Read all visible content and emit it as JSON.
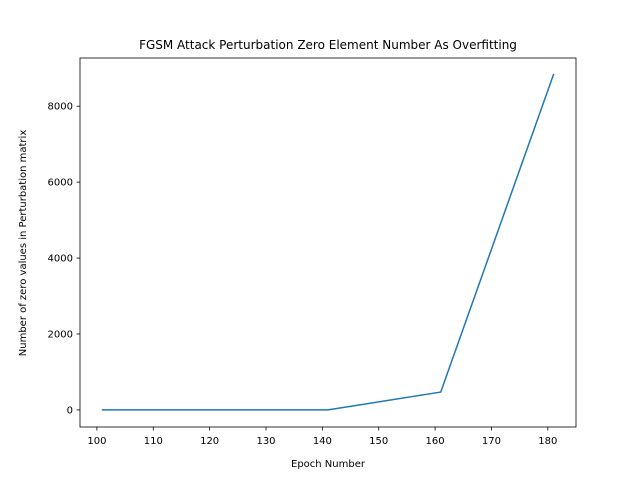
{
  "chart_data": {
    "type": "line",
    "title": "FGSM Attack Perturbation Zero Element Number As Overfitting",
    "xlabel": "Epoch Number",
    "ylabel": "Number of zero values in Perturbation matrix",
    "x": [
      101,
      121,
      141,
      161,
      181
    ],
    "series": [
      {
        "values": [
          0,
          0,
          0,
          470,
          8830
        ],
        "color": "#1f77b4"
      }
    ],
    "xlim": [
      97,
      185
    ],
    "ylim": [
      -450,
      9270
    ],
    "xticks": [
      100,
      110,
      120,
      130,
      140,
      150,
      160,
      170,
      180
    ],
    "yticks": [
      0,
      2000,
      4000,
      6000,
      8000
    ],
    "grid": false,
    "legend": "none"
  }
}
